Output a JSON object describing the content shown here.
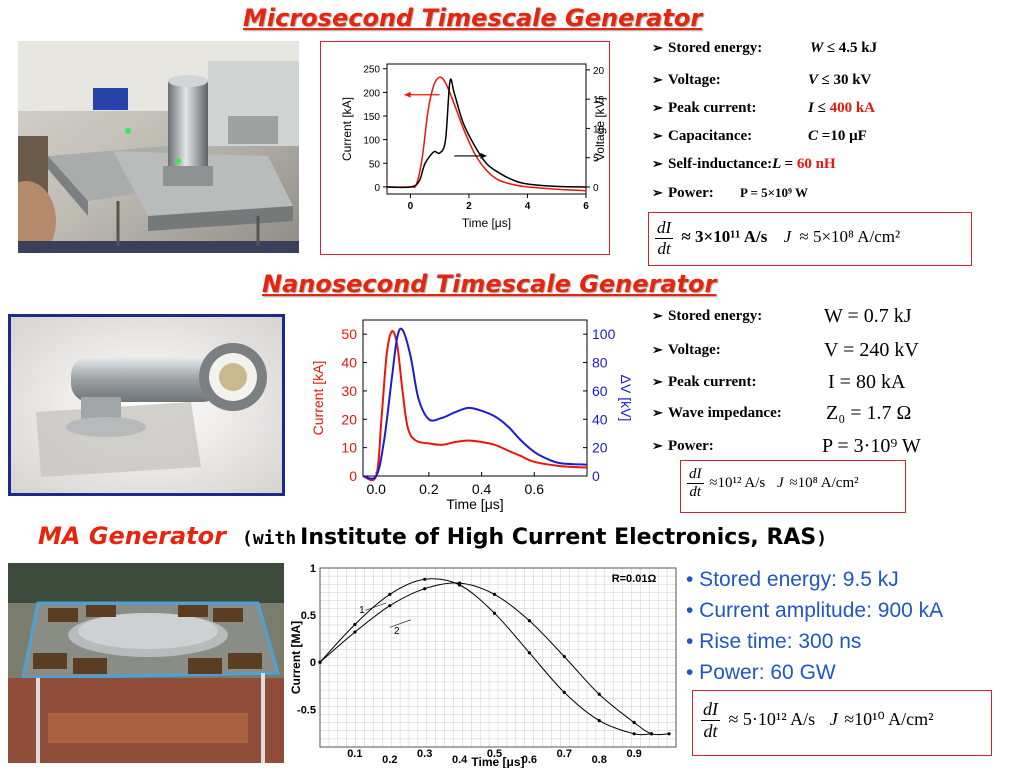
{
  "titles": {
    "micro": " Microsecond Timescale Generator",
    "nano": "Nanosecond Timescale Generator",
    "ma_part1": "MA Generator",
    "ma_part2": "(with",
    "ma_part3": "Institute of High Current Electronics, RAS",
    "ma_part4": ")"
  },
  "micro_specs": [
    {
      "label": "Stored energy:",
      "value_var": "W",
      "value_rest": "≤ 4.5 kJ",
      "value_red": ""
    },
    {
      "label": "Voltage:",
      "value_var": "V",
      "value_rest": "≤ 30 kV",
      "value_red": ""
    },
    {
      "label": "Peak current:",
      "value_var": "I",
      "value_rest": "≤ ",
      "value_red": "400 kA"
    },
    {
      "label": "Capacitance:",
      "value_var": "C",
      "value_rest": "=10 μF",
      "value_red": ""
    },
    {
      "label": "Self-inductance:",
      "value_var": "L",
      "value_rest": "= ",
      "value_red": "60 nH"
    },
    {
      "label": "Power:",
      "value_var": "",
      "value_rest": "P = 5×10⁹ W",
      "value_red": ""
    }
  ],
  "micro_formula": {
    "num": "dI",
    "den": "dt",
    "expr1": "≈ 3×10¹¹ A/s",
    "expr2": "J",
    "expr3": "≈ 5×10⁸ A/cm²"
  },
  "nano_specs": [
    {
      "label": "Stored energy:",
      "value": "W = 0.7 kJ"
    },
    {
      "label": "Voltage:",
      "value": "V = 240 kV"
    },
    {
      "label": "Peak current:",
      "value": "I = 80 kA"
    },
    {
      "label": "Wave impedance:",
      "value": "Z₀ = 1.7 Ω"
    },
    {
      "label": "Power:",
      "value": "P = 3·10⁹  W"
    }
  ],
  "nano_formula": {
    "num": "dI",
    "den": "dt",
    "expr1": "≈10¹² A/s",
    "expr2": "J",
    "expr3": "≈10⁸ A/cm²"
  },
  "ma_bullets": [
    "• Stored energy: 9.5 kJ",
    "• Current amplitude: 900 kA",
    "• Rise time: 300 ns",
    "• Power: 60 GW"
  ],
  "ma_formula": {
    "num": "dI",
    "den": "dt",
    "expr1": "≈ 5·10¹² A/s",
    "expr2": "J",
    "expr3": "≈10¹⁰ A/cm²"
  },
  "photos": {
    "micro": "microsecond generator photo",
    "nano": "nanosecond generator photo",
    "ma": "MA generator photo"
  },
  "colors": {
    "red": "#e8160c",
    "blue": "#1f56c8",
    "title_red": "#e8240c",
    "curve_black": "#000000",
    "nano_blue": "#1c1cd6"
  },
  "chart_data": [
    {
      "type": "line",
      "xlabel": "Time [μs]",
      "ylabel": "Current [kA]",
      "ylabel_right": "Voltage [kV]",
      "xlim": [
        -0.8,
        6
      ],
      "ylim": [
        -15,
        260
      ],
      "ylim_right": [
        -1.2,
        21
      ],
      "xticks": [
        "0",
        "2",
        "4",
        "6"
      ],
      "yticks": [
        "0",
        "50",
        "100",
        "150",
        "200",
        "250"
      ],
      "yticks_right": [
        "0",
        "5",
        "10",
        "15",
        "20"
      ],
      "series": [
        {
          "axis": "left",
          "color": "#e8160c",
          "x": [
            -0.8,
            0.0,
            0.2,
            0.4,
            0.6,
            0.8,
            1.0,
            1.2,
            1.5,
            1.8,
            2.2,
            2.6,
            3.0,
            3.5,
            4.0,
            5.0,
            6.0
          ],
          "y": [
            0,
            0,
            5,
            60,
            160,
            215,
            232,
            220,
            175,
            125,
            70,
            35,
            15,
            5,
            0,
            -5,
            -8
          ]
        },
        {
          "axis": "right",
          "color": "#000000",
          "x": [
            -0.8,
            0.0,
            0.3,
            0.5,
            0.8,
            1.0,
            1.2,
            1.35,
            1.5,
            1.8,
            2.2,
            2.6,
            3.0,
            3.5,
            4.0,
            5.0,
            6.0
          ],
          "y": [
            0,
            0,
            1,
            4,
            6,
            5.8,
            8,
            18,
            16,
            11,
            7,
            4,
            2.5,
            1.2,
            0.5,
            0.1,
            0
          ]
        }
      ],
      "arrows": [
        "left",
        "right"
      ]
    },
    {
      "type": "line",
      "xlabel": "Time [μs]",
      "ylabel": "Current [kA]",
      "ylabel_right": "ΔV [kV]",
      "xlim": [
        -0.05,
        0.8
      ],
      "ylim": [
        0,
        55
      ],
      "ylim_right": [
        0,
        110
      ],
      "xticks": [
        "0.0",
        "0.2",
        "0.4",
        "0.6"
      ],
      "yticks": [
        "0",
        "10",
        "20",
        "30",
        "40",
        "50"
      ],
      "yticks_right": [
        "0",
        "20",
        "40",
        "60",
        "80",
        "100"
      ],
      "series": [
        {
          "axis": "left",
          "color": "#e8160c",
          "x": [
            -0.05,
            0.0,
            0.02,
            0.04,
            0.06,
            0.08,
            0.1,
            0.12,
            0.15,
            0.2,
            0.25,
            0.3,
            0.35,
            0.4,
            0.45,
            0.5,
            0.55,
            0.6,
            0.7,
            0.8
          ],
          "y": [
            0,
            0,
            20,
            43,
            51,
            46,
            30,
            17,
            12.5,
            11.5,
            11,
            12,
            12.5,
            12,
            11,
            9,
            7,
            5,
            3.5,
            3
          ]
        },
        {
          "axis": "right",
          "color": "#1c1cd6",
          "x": [
            -0.05,
            0.0,
            0.03,
            0.06,
            0.08,
            0.1,
            0.13,
            0.16,
            0.2,
            0.25,
            0.3,
            0.35,
            0.4,
            0.45,
            0.5,
            0.55,
            0.6,
            0.65,
            0.7,
            0.8
          ],
          "y": [
            0,
            0,
            25,
            70,
            98,
            103,
            85,
            55,
            40,
            41,
            45,
            48,
            46,
            42,
            35,
            25,
            17,
            12,
            9,
            8
          ]
        }
      ]
    },
    {
      "type": "line",
      "xlabel": "Time [μs]",
      "ylabel": "Current [MA]",
      "annotation": "R=0.01Ω",
      "xlim": [
        0,
        1.02
      ],
      "ylim": [
        -0.9,
        1.0
      ],
      "xticks": [
        "0.1",
        "0.2",
        "0.3",
        "0.4",
        "0.5",
        "0.6",
        "0.7",
        "0.8",
        "0.9"
      ],
      "yticks": [
        "1",
        "0.5",
        "0",
        "-0.5"
      ],
      "curve_labels": [
        "1",
        "2"
      ],
      "series": [
        {
          "name": "1",
          "color": "#000000",
          "x": [
            0,
            0.1,
            0.2,
            0.3,
            0.4,
            0.5,
            0.6,
            0.7,
            0.8,
            0.9,
            0.95
          ],
          "y": [
            0,
            0.4,
            0.72,
            0.88,
            0.82,
            0.52,
            0.1,
            -0.32,
            -0.62,
            -0.76,
            -0.76
          ]
        },
        {
          "name": "2",
          "color": "#000000",
          "x": [
            0,
            0.1,
            0.2,
            0.3,
            0.4,
            0.5,
            0.6,
            0.7,
            0.8,
            0.9,
            0.95,
            1.0
          ],
          "y": [
            0,
            0.32,
            0.6,
            0.78,
            0.84,
            0.72,
            0.44,
            0.06,
            -0.34,
            -0.64,
            -0.76,
            -0.76
          ]
        }
      ]
    }
  ]
}
